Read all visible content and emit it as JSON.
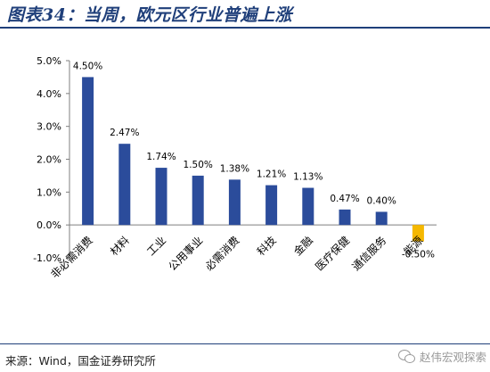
{
  "figure": {
    "title": "图表34：当周，欧元区行业普遍上涨",
    "source": "来源：Wind，国金证券研究所",
    "watermark": "赵伟宏观探索",
    "watermark_icon": "wechat-icon"
  },
  "chart_data": {
    "type": "bar",
    "title": "",
    "xlabel": "",
    "ylabel": "",
    "categories": [
      "非必需消费",
      "材料",
      "工业",
      "公用事业",
      "必需消费",
      "科技",
      "金融",
      "医疗保健",
      "通信服务",
      "能源"
    ],
    "values": [
      4.5,
      2.47,
      1.74,
      1.5,
      1.38,
      1.21,
      1.13,
      0.47,
      0.4,
      -0.5
    ],
    "data_labels": [
      "4.50%",
      "2.47%",
      "1.74%",
      "1.50%",
      "1.38%",
      "1.21%",
      "1.13%",
      "0.47%",
      "0.40%",
      "-0.50%"
    ],
    "ylim": [
      -1.0,
      5.0
    ],
    "yticks": [
      -1.0,
      0.0,
      1.0,
      2.0,
      3.0,
      4.0,
      5.0
    ],
    "ytick_labels": [
      "-1.0%",
      "0.0%",
      "1.0%",
      "2.0%",
      "3.0%",
      "4.0%",
      "5.0%"
    ],
    "grid": false,
    "legend": "none",
    "colors": {
      "positive": "#2b4c9b",
      "negative": "#f5b800",
      "axis": "#7f7f7f",
      "text": "#000000"
    }
  }
}
